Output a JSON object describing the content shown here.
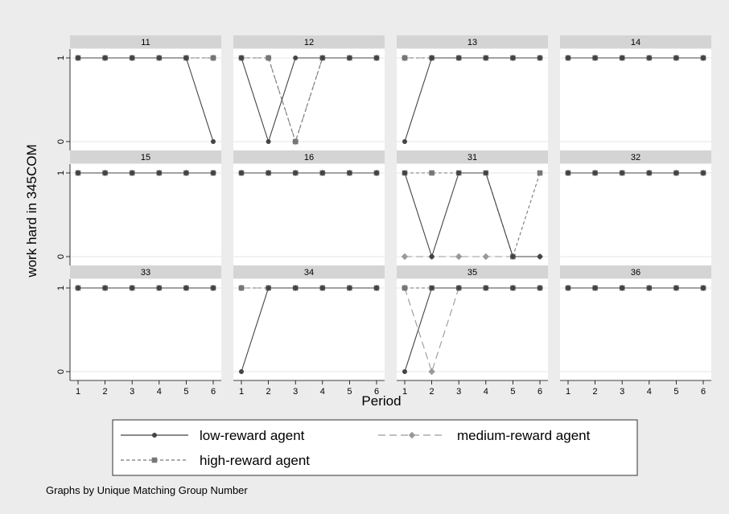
{
  "chart_data": {
    "type": "line",
    "ylabel": "work hard in 345COM",
    "xlabel": "Period",
    "note": "Graphs by Unique Matching Group Number",
    "x": [
      1,
      2,
      3,
      4,
      5,
      6
    ],
    "x_ticks": [
      "1",
      "2",
      "3",
      "4",
      "5",
      "6"
    ],
    "y_ticks": [
      "0",
      "1"
    ],
    "ylim": [
      0,
      1
    ],
    "grid": true,
    "legend": {
      "position": "bottom",
      "entries": [
        "low-reward agent",
        "medium-reward agent",
        "high-reward agent"
      ]
    },
    "series_styles": [
      {
        "name": "low-reward agent",
        "color": "#444444",
        "marker": "circle",
        "dash": "solid"
      },
      {
        "name": "medium-reward agent",
        "color": "#999999",
        "marker": "diamond",
        "dash": "longdash"
      },
      {
        "name": "high-reward agent",
        "color": "#777777",
        "marker": "square",
        "dash": "shortdash"
      }
    ],
    "panels": [
      {
        "title": "11",
        "series": {
          "low-reward agent": [
            1,
            1,
            1,
            1,
            1,
            0
          ],
          "medium-reward agent": [
            1,
            1,
            1,
            1,
            1,
            1
          ],
          "high-reward agent": [
            1,
            1,
            1,
            1,
            1,
            1
          ]
        }
      },
      {
        "title": "12",
        "series": {
          "low-reward agent": [
            1,
            0,
            1,
            1,
            1,
            1
          ],
          "medium-reward agent": [
            1,
            1,
            0,
            1,
            1,
            1
          ],
          "high-reward agent": [
            1,
            1,
            0,
            1,
            1,
            1
          ]
        }
      },
      {
        "title": "13",
        "series": {
          "low-reward agent": [
            0,
            1,
            1,
            1,
            1,
            1
          ],
          "medium-reward agent": [
            1,
            1,
            1,
            1,
            1,
            1
          ],
          "high-reward agent": [
            1,
            1,
            1,
            1,
            1,
            1
          ]
        }
      },
      {
        "title": "14",
        "series": {
          "low-reward agent": [
            1,
            1,
            1,
            1,
            1,
            1
          ],
          "medium-reward agent": [
            1,
            1,
            1,
            1,
            1,
            1
          ],
          "high-reward agent": [
            1,
            1,
            1,
            1,
            1,
            1
          ]
        }
      },
      {
        "title": "15",
        "series": {
          "low-reward agent": [
            1,
            1,
            1,
            1,
            1,
            1
          ],
          "medium-reward agent": [
            1,
            1,
            1,
            1,
            1,
            1
          ],
          "high-reward agent": [
            1,
            1,
            1,
            1,
            1,
            1
          ]
        }
      },
      {
        "title": "16",
        "series": {
          "low-reward agent": [
            1,
            1,
            1,
            1,
            1,
            1
          ],
          "medium-reward agent": [
            1,
            1,
            1,
            1,
            1,
            1
          ],
          "high-reward agent": [
            1,
            1,
            1,
            1,
            1,
            1
          ]
        }
      },
      {
        "title": "31",
        "series": {
          "low-reward agent": [
            1,
            0,
            1,
            1,
            0,
            0
          ],
          "medium-reward agent": [
            0,
            0,
            0,
            0,
            0,
            0
          ],
          "high-reward agent": [
            1,
            1,
            1,
            1,
            0,
            1
          ]
        }
      },
      {
        "title": "32",
        "series": {
          "low-reward agent": [
            1,
            1,
            1,
            1,
            1,
            1
          ],
          "medium-reward agent": [
            1,
            1,
            1,
            1,
            1,
            1
          ],
          "high-reward agent": [
            1,
            1,
            1,
            1,
            1,
            1
          ]
        }
      },
      {
        "title": "33",
        "series": {
          "low-reward agent": [
            1,
            1,
            1,
            1,
            1,
            1
          ],
          "medium-reward agent": [
            1,
            1,
            1,
            1,
            1,
            1
          ],
          "high-reward agent": [
            1,
            1,
            1,
            1,
            1,
            1
          ]
        }
      },
      {
        "title": "34",
        "series": {
          "low-reward agent": [
            0,
            1,
            1,
            1,
            1,
            1
          ],
          "medium-reward agent": [
            1,
            1,
            1,
            1,
            1,
            1
          ],
          "high-reward agent": [
            1,
            1,
            1,
            1,
            1,
            1
          ]
        }
      },
      {
        "title": "35",
        "series": {
          "low-reward agent": [
            0,
            1,
            1,
            1,
            1,
            1
          ],
          "medium-reward agent": [
            1,
            0,
            1,
            1,
            1,
            1
          ],
          "high-reward agent": [
            1,
            1,
            1,
            1,
            1,
            1
          ]
        }
      },
      {
        "title": "36",
        "series": {
          "low-reward agent": [
            1,
            1,
            1,
            1,
            1,
            1
          ],
          "medium-reward agent": [
            1,
            1,
            1,
            1,
            1,
            1
          ],
          "high-reward agent": [
            1,
            1,
            1,
            1,
            1,
            1
          ]
        }
      }
    ]
  }
}
